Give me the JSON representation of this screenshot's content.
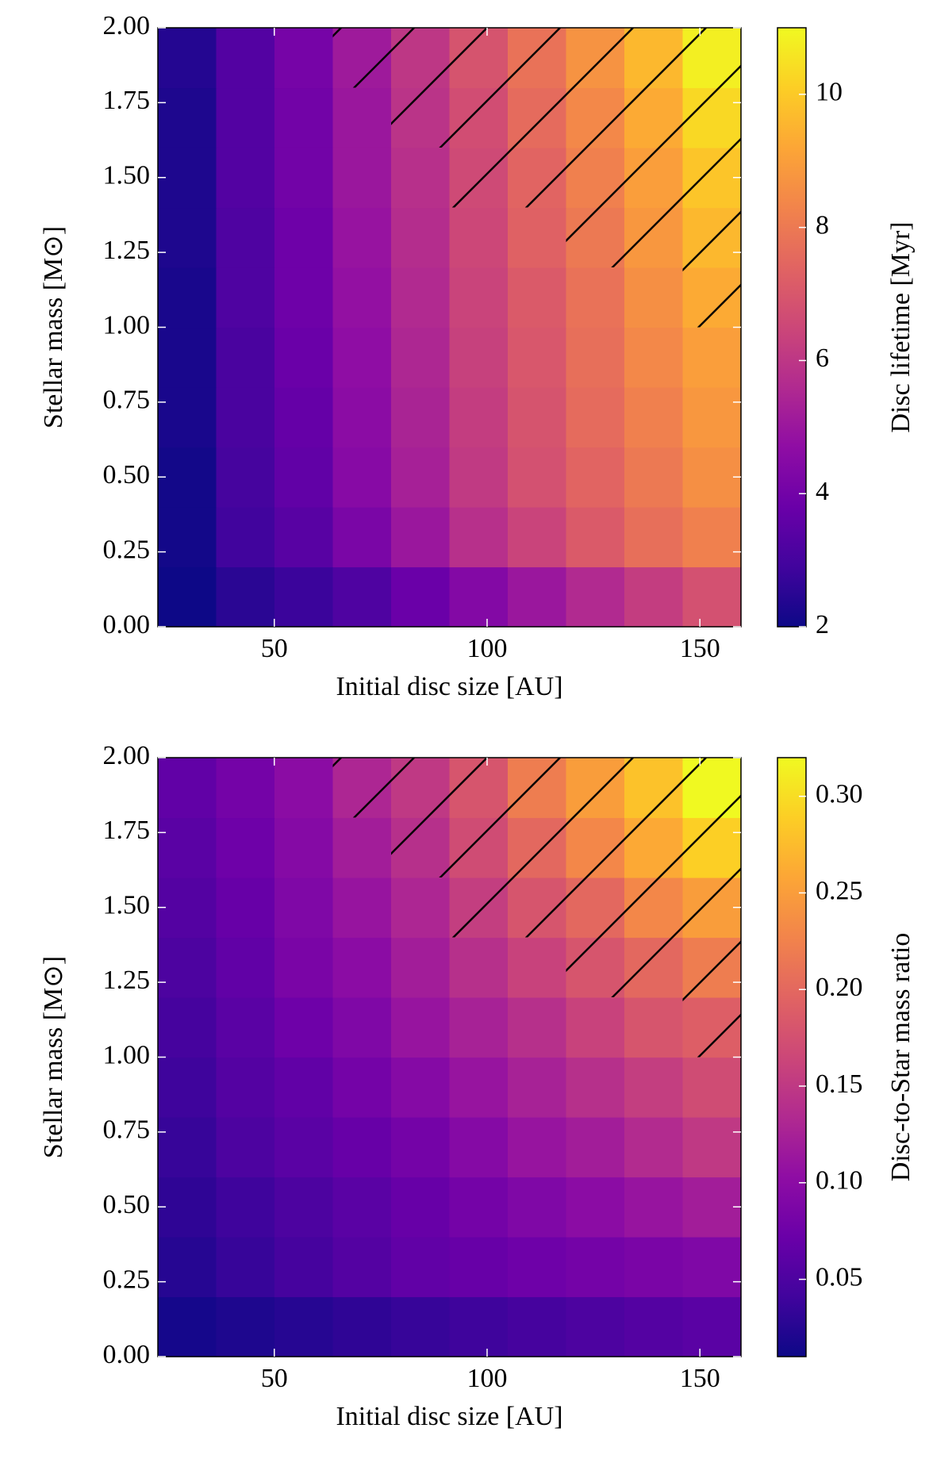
{
  "chart_data": [
    {
      "type": "heatmap",
      "cmap": "plasma",
      "xlabel": "Initial disc size [AU]",
      "ylabel": "Stellar mass [M⊙]",
      "x": [
        29.5,
        43.2,
        56.9,
        70.6,
        84.3,
        98,
        111.7,
        125.4,
        139.1,
        152.8
      ],
      "y": [
        0.1,
        0.3,
        0.5,
        0.7,
        0.9,
        1.1,
        1.3,
        1.5,
        1.7,
        1.9
      ],
      "z": [
        [
          2.0,
          2.5,
          2.8,
          3.2,
          3.8,
          4.4,
          5.0,
          5.6,
          6.2,
          6.8
        ],
        [
          2.1,
          2.9,
          3.4,
          4.2,
          5.0,
          5.8,
          6.4,
          7.1,
          7.7,
          8.2
        ],
        [
          2.1,
          3.0,
          3.6,
          4.5,
          5.3,
          6.1,
          6.8,
          7.4,
          8.0,
          8.6
        ],
        [
          2.2,
          3.1,
          3.7,
          4.6,
          5.4,
          6.2,
          6.9,
          7.6,
          8.2,
          8.8
        ],
        [
          2.2,
          3.1,
          3.8,
          4.7,
          5.5,
          6.3,
          7.0,
          7.7,
          8.4,
          9.0
        ],
        [
          2.2,
          3.2,
          3.9,
          4.8,
          5.6,
          6.4,
          7.1,
          7.8,
          8.6,
          9.3
        ],
        [
          2.3,
          3.2,
          3.9,
          4.9,
          5.7,
          6.5,
          7.3,
          8.0,
          8.8,
          9.6
        ],
        [
          2.3,
          3.3,
          4.0,
          5.0,
          5.8,
          6.6,
          7.4,
          8.2,
          9.0,
          9.9
        ],
        [
          2.3,
          3.3,
          4.0,
          5.0,
          5.9,
          6.7,
          7.6,
          8.4,
          9.3,
          10.3
        ],
        [
          2.4,
          3.3,
          4.1,
          5.1,
          6.0,
          6.9,
          7.8,
          8.7,
          9.6,
          10.8
        ]
      ],
      "xlim": [
        22.65,
        159.65
      ],
      "ylim": [
        0,
        2
      ],
      "xticks": [
        50,
        100,
        150
      ],
      "yticks": [
        {
          "value": 0,
          "label": "0.00"
        },
        {
          "value": 0.25,
          "label": "0.25"
        },
        {
          "value": 0.5,
          "label": "0.50"
        },
        {
          "value": 0.75,
          "label": "0.75"
        },
        {
          "value": 1,
          "label": "1.00"
        },
        {
          "value": 1.25,
          "label": "1.25"
        },
        {
          "value": 1.5,
          "label": "1.50"
        },
        {
          "value": 1.75,
          "label": "1.75"
        },
        {
          "value": 2,
          "label": "2.00"
        }
      ],
      "colorbar": {
        "label": "Disc lifetime [Myr]",
        "lim": [
          2,
          11
        ],
        "ticks": [
          2,
          4,
          6,
          8,
          10
        ]
      }
    },
    {
      "type": "heatmap",
      "cmap": "plasma",
      "xlabel": "Initial disc size [AU]",
      "ylabel": "Stellar mass [M⊙]",
      "x": [
        29.5,
        43.2,
        56.9,
        70.6,
        84.3,
        98,
        111.7,
        125.4,
        139.1,
        152.8
      ],
      "y": [
        0.1,
        0.3,
        0.5,
        0.7,
        0.9,
        1.1,
        1.3,
        1.5,
        1.7,
        1.9
      ],
      "z": [
        [
          0.015,
          0.02,
          0.025,
          0.03,
          0.035,
          0.04,
          0.045,
          0.05,
          0.055,
          0.06
        ],
        [
          0.025,
          0.035,
          0.045,
          0.055,
          0.065,
          0.07,
          0.075,
          0.08,
          0.085,
          0.09
        ],
        [
          0.03,
          0.04,
          0.05,
          0.06,
          0.07,
          0.08,
          0.09,
          0.1,
          0.11,
          0.12
        ],
        [
          0.035,
          0.05,
          0.06,
          0.07,
          0.08,
          0.095,
          0.11,
          0.12,
          0.135,
          0.15
        ],
        [
          0.04,
          0.055,
          0.065,
          0.08,
          0.095,
          0.11,
          0.125,
          0.14,
          0.155,
          0.17
        ],
        [
          0.045,
          0.06,
          0.075,
          0.09,
          0.11,
          0.125,
          0.14,
          0.16,
          0.18,
          0.19
        ],
        [
          0.05,
          0.065,
          0.085,
          0.1,
          0.12,
          0.14,
          0.16,
          0.18,
          0.2,
          0.22
        ],
        [
          0.055,
          0.07,
          0.09,
          0.11,
          0.13,
          0.155,
          0.18,
          0.2,
          0.23,
          0.25
        ],
        [
          0.06,
          0.075,
          0.095,
          0.12,
          0.14,
          0.17,
          0.2,
          0.23,
          0.26,
          0.29
        ],
        [
          0.065,
          0.08,
          0.1,
          0.13,
          0.15,
          0.18,
          0.22,
          0.25,
          0.28,
          0.32
        ]
      ],
      "xlim": [
        22.65,
        159.65
      ],
      "ylim": [
        0,
        2
      ],
      "xticks": [
        50,
        100,
        150
      ],
      "yticks": [
        {
          "value": 0,
          "label": "0.00"
        },
        {
          "value": 0.25,
          "label": "0.25"
        },
        {
          "value": 0.5,
          "label": "0.50"
        },
        {
          "value": 0.75,
          "label": "0.75"
        },
        {
          "value": 1,
          "label": "1.00"
        },
        {
          "value": 1.25,
          "label": "1.25"
        },
        {
          "value": 1.5,
          "label": "1.50"
        },
        {
          "value": 1.75,
          "label": "1.75"
        },
        {
          "value": 2,
          "label": "2.00"
        }
      ],
      "colorbar": {
        "label": "Disc-to-Star mass ratio",
        "lim": [
          0.01,
          0.32
        ],
        "ticks": [
          0.05,
          {
            "value": 0.1,
            "label": "0.10"
          },
          0.15,
          {
            "value": 0.2,
            "label": "0.20"
          },
          0.25,
          {
            "value": 0.3,
            "label": "0.30"
          }
        ]
      }
    }
  ]
}
